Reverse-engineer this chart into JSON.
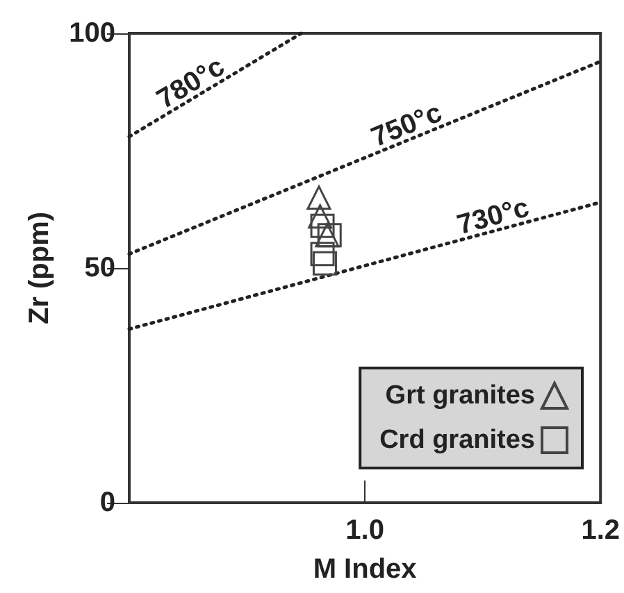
{
  "chart_data": {
    "type": "scatter",
    "xlabel": "M Index",
    "ylabel": "Zr (ppm)",
    "xlim": [
      0.8,
      1.2
    ],
    "ylim": [
      0,
      100
    ],
    "xticks": [
      {
        "value": 1.0,
        "label": "1.0"
      },
      {
        "value": 1.2,
        "label": "1.2"
      }
    ],
    "yticks": [
      0,
      50,
      100
    ],
    "grid": false,
    "legend": "bottom right",
    "series": [
      {
        "name": "780°c",
        "type": "line",
        "color": "#222222",
        "marker": "none",
        "line_style": "dotted",
        "x": [
          0.8,
          0.946
        ],
        "values": [
          78,
          100
        ]
      },
      {
        "name": "750°c",
        "type": "line",
        "color": "#222222",
        "marker": "none",
        "line_style": "dotted",
        "x": [
          0.8,
          1.2
        ],
        "values": [
          53,
          94
        ]
      },
      {
        "name": "730°c",
        "type": "line",
        "color": "#222222",
        "marker": "none",
        "line_style": "dotted",
        "x": [
          0.8,
          1.2
        ],
        "values": [
          37,
          64
        ]
      },
      {
        "name": "Grt granites",
        "type": "scatter",
        "color": "#444444",
        "marker": "triangle",
        "x": [
          0.961,
          0.962,
          0.968
        ],
        "values": [
          65,
          61,
          57
        ]
      },
      {
        "name": "Crd granites",
        "type": "scatter",
        "color": "#444444",
        "marker": "square",
        "x": [
          0.964,
          0.97,
          0.964,
          0.966
        ],
        "values": [
          59,
          57,
          53,
          51
        ]
      }
    ]
  }
}
